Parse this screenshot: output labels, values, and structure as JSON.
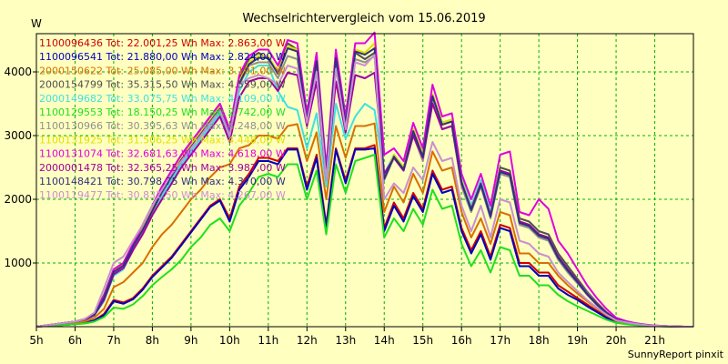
{
  "chart_data": {
    "type": "line",
    "title": "Wechselrichtervergleich vom 15.06.2019",
    "ylabel": "W",
    "footer": "SunnyReport pinxit",
    "ylim": [
      0,
      4600
    ],
    "yticks": [
      "1000",
      "2000",
      "3000",
      "4000"
    ],
    "ytick_values": [
      1000,
      2000,
      3000,
      4000
    ],
    "xlim": [
      5,
      22
    ],
    "xticks": [
      "5h",
      "6h",
      "7h",
      "8h",
      "9h",
      "10h",
      "11h",
      "12h",
      "13h",
      "14h",
      "15h",
      "16h",
      "17h",
      "18h",
      "19h",
      "20h",
      "21h"
    ],
    "xtick_values": [
      5,
      6,
      7,
      8,
      9,
      10,
      11,
      12,
      13,
      14,
      15,
      16,
      17,
      18,
      19,
      20,
      21
    ],
    "x": [
      5.0,
      5.25,
      5.5,
      5.75,
      6.0,
      6.25,
      6.5,
      6.75,
      7.0,
      7.25,
      7.5,
      7.75,
      8.0,
      8.25,
      8.5,
      8.75,
      9.0,
      9.25,
      9.5,
      9.75,
      10.0,
      10.25,
      10.5,
      10.75,
      11.0,
      11.25,
      11.5,
      11.75,
      12.0,
      12.25,
      12.5,
      12.75,
      13.0,
      13.25,
      13.5,
      13.75,
      14.0,
      14.25,
      14.5,
      14.75,
      15.0,
      15.25,
      15.5,
      15.75,
      16.0,
      16.25,
      16.5,
      16.75,
      17.0,
      17.25,
      17.5,
      17.75,
      18.0,
      18.25,
      18.5,
      18.75,
      19.0,
      19.25,
      19.5,
      19.75,
      20.0,
      20.25,
      20.5,
      20.75,
      21.0,
      21.25,
      21.5,
      21.75,
      22.0
    ],
    "series": [
      {
        "name": "1100096436 Tot: 22.001,25 Wh Max: 2.863,00 W",
        "color": "#d00000",
        "values": [
          0,
          10,
          20,
          30,
          40,
          60,
          100,
          200,
          420,
          380,
          450,
          600,
          800,
          950,
          1100,
          1300,
          1500,
          1700,
          1900,
          2000,
          1700,
          2200,
          2400,
          2650,
          2650,
          2600,
          2800,
          2800,
          2200,
          2700,
          1600,
          2800,
          2300,
          2800,
          2800,
          2850,
          1550,
          1950,
          1700,
          2100,
          1850,
          2450,
          2150,
          2200,
          1550,
          1200,
          1500,
          1100,
          1600,
          1550,
          1000,
          1000,
          850,
          850,
          650,
          550,
          450,
          350,
          250,
          150,
          80,
          60,
          40,
          25,
          15,
          8,
          3,
          0,
          0
        ]
      },
      {
        "name": "1100096541 Tot: 21.880,00 Wh Max: 2.824,00 W",
        "color": "#0000c0",
        "values": [
          0,
          10,
          20,
          30,
          40,
          60,
          100,
          180,
          400,
          360,
          430,
          580,
          780,
          930,
          1080,
          1280,
          1480,
          1680,
          1880,
          1980,
          1650,
          2150,
          2350,
          2600,
          2600,
          2550,
          2780,
          2780,
          2150,
          2650,
          1550,
          2780,
          2250,
          2780,
          2780,
          2800,
          1500,
          1900,
          1650,
          2050,
          1800,
          2400,
          2100,
          2150,
          1500,
          1150,
          1450,
          1050,
          1550,
          1500,
          950,
          950,
          800,
          800,
          600,
          500,
          420,
          320,
          230,
          140,
          70,
          50,
          35,
          20,
          12,
          6,
          2,
          0,
          0
        ]
      },
      {
        "name": "2000150622 Tot: 25.085,00 Wh Max: 3.191,00 W",
        "color": "#d87000",
        "values": [
          0,
          10,
          20,
          30,
          50,
          80,
          140,
          280,
          620,
          700,
          850,
          1000,
          1250,
          1450,
          1600,
          1800,
          2000,
          2150,
          2350,
          2500,
          2550,
          2800,
          2850,
          3000,
          3000,
          2950,
          3150,
          3180,
          2600,
          3050,
          2000,
          3150,
          2650,
          3150,
          3150,
          3190,
          1800,
          2200,
          1950,
          2400,
          2100,
          2750,
          2450,
          2500,
          1800,
          1400,
          1700,
          1300,
          1800,
          1750,
          1150,
          1150,
          1000,
          1000,
          800,
          650,
          520,
          400,
          290,
          180,
          90,
          60,
          40,
          25,
          15,
          8,
          3,
          0,
          0
        ]
      },
      {
        "name": "2000154799 Tot: 35.315,50 Wh Max: 4.559,00 W",
        "color": "#505050",
        "values": [
          0,
          20,
          40,
          60,
          80,
          120,
          200,
          500,
          900,
          1000,
          1300,
          1600,
          1900,
          2200,
          2450,
          2700,
          2900,
          3100,
          3300,
          3500,
          3100,
          3900,
          4200,
          4300,
          4200,
          4000,
          4450,
          4350,
          3300,
          4200,
          2400,
          4200,
          3200,
          4300,
          4200,
          4300,
          2350,
          2700,
          2500,
          3100,
          2700,
          3650,
          3200,
          3250,
          2300,
          1900,
          2300,
          1800,
          2500,
          2450,
          1700,
          1650,
          1500,
          1450,
          1150,
          950,
          750,
          550,
          380,
          230,
          120,
          80,
          50,
          30,
          18,
          10,
          4,
          0,
          0
        ]
      },
      {
        "name": "2000149682 Tot: 33.075,75 Wh Max: 4.109,00 W",
        "color": "#40e0e0",
        "values": [
          0,
          20,
          40,
          60,
          80,
          110,
          180,
          400,
          800,
          900,
          1200,
          1500,
          1800,
          2050,
          2300,
          2550,
          2750,
          2950,
          3150,
          3350,
          2950,
          3700,
          4000,
          4100,
          4100,
          3700,
          3450,
          3400,
          2800,
          3350,
          2200,
          3500,
          2950,
          3300,
          3500,
          3400,
          2400,
          2700,
          2500,
          3000,
          2700,
          3500,
          3200,
          3250,
          2350,
          1900,
          2300,
          1800,
          2450,
          2400,
          1650,
          1600,
          1450,
          1400,
          1100,
          900,
          720,
          530,
          360,
          220,
          110,
          75,
          45,
          28,
          16,
          8,
          3,
          0,
          0
        ]
      },
      {
        "name": "1100129553 Tot: 18.150,25 Wh Max: 2.742,00 W",
        "color": "#20e020",
        "values": [
          0,
          10,
          20,
          30,
          40,
          50,
          80,
          150,
          300,
          280,
          350,
          480,
          650,
          780,
          900,
          1050,
          1250,
          1400,
          1600,
          1700,
          1500,
          1900,
          2100,
          2350,
          2400,
          2350,
          2550,
          2550,
          2000,
          2450,
          1450,
          2550,
          2100,
          2600,
          2650,
          2700,
          1400,
          1700,
          1500,
          1850,
          1600,
          2150,
          1850,
          1900,
          1300,
          950,
          1200,
          850,
          1250,
          1200,
          800,
          800,
          650,
          650,
          500,
          400,
          320,
          250,
          180,
          110,
          60,
          40,
          25,
          15,
          8,
          4,
          1,
          0,
          0
        ]
      },
      {
        "name": "1100130966 Tot: 30.395,63 Wh Max: 4.248,00 W",
        "color": "#909090",
        "values": [
          0,
          20,
          40,
          60,
          80,
          110,
          180,
          440,
          850,
          950,
          1250,
          1500,
          1800,
          2100,
          2350,
          2600,
          2800,
          3000,
          3200,
          3400,
          3000,
          3800,
          4100,
          4150,
          4150,
          3900,
          4250,
          4200,
          3200,
          4100,
          2350,
          4100,
          3100,
          4200,
          4150,
          4248,
          2300,
          2650,
          2450,
          3000,
          2600,
          3550,
          3100,
          3150,
          2200,
          1800,
          2200,
          1700,
          2400,
          2350,
          1600,
          1550,
          1400,
          1350,
          1050,
          850,
          680,
          500,
          340,
          210,
          110,
          70,
          45,
          28,
          16,
          9,
          3,
          0,
          0
        ]
      },
      {
        "name": "1100131925 Tot: 31.506,25 Wh Max: 4.448,00 W",
        "color": "#e0e000",
        "values": [
          0,
          20,
          40,
          60,
          80,
          115,
          190,
          460,
          870,
          980,
          1280,
          1550,
          1850,
          2150,
          2400,
          2650,
          2850,
          3050,
          3250,
          3450,
          3050,
          3850,
          4150,
          4250,
          4250,
          4000,
          4400,
          4350,
          3250,
          4200,
          2400,
          4250,
          3200,
          4350,
          4300,
          4448,
          2350,
          2700,
          2500,
          3100,
          2700,
          3650,
          3200,
          3250,
          2300,
          1850,
          2250,
          1750,
          2450,
          2400,
          1650,
          1600,
          1450,
          1400,
          1100,
          900,
          710,
          520,
          360,
          220,
          115,
          75,
          48,
          30,
          17,
          9,
          3,
          0,
          0
        ]
      },
      {
        "name": "1100131074 Tot: 32.681,63 Wh Max: 4.618,00 W",
        "color": "#e000e0",
        "values": [
          0,
          20,
          40,
          60,
          80,
          120,
          200,
          480,
          900,
          1000,
          1300,
          1600,
          1900,
          2200,
          2450,
          2700,
          2900,
          3100,
          3300,
          3500,
          3100,
          3950,
          4250,
          4350,
          4350,
          4100,
          4500,
          4450,
          3350,
          4300,
          2500,
          4350,
          3300,
          4450,
          4450,
          4618,
          2700,
          2800,
          2600,
          3200,
          2800,
          3800,
          3300,
          3350,
          2400,
          2000,
          2400,
          1900,
          2700,
          2750,
          1800,
          1750,
          2000,
          1850,
          1350,
          1150,
          900,
          650,
          450,
          280,
          140,
          90,
          55,
          35,
          20,
          10,
          4,
          0,
          0
        ]
      },
      {
        "name": "2000001478 Tot: 32.365,25 Wh Max: 3.987,00 W",
        "color": "#a000a0",
        "values": [
          0,
          20,
          40,
          60,
          80,
          110,
          180,
          420,
          820,
          920,
          1200,
          1450,
          1750,
          2000,
          2250,
          2500,
          2700,
          2900,
          3100,
          3300,
          2900,
          3600,
          3850,
          3900,
          3900,
          3700,
          3987,
          3950,
          3150,
          3850,
          2300,
          3850,
          3050,
          3950,
          3900,
          3987,
          2400,
          2650,
          2450,
          3000,
          2650,
          3500,
          3100,
          3150,
          2250,
          1850,
          2250,
          1750,
          2450,
          2400,
          1650,
          1600,
          1450,
          1400,
          1100,
          900,
          720,
          520,
          360,
          220,
          115,
          75,
          46,
          28,
          16,
          8,
          3,
          0,
          0
        ]
      },
      {
        "name": "1100148421 Tot: 30.798,75 Wh Max: 4.370,00 W",
        "color": "#303080",
        "values": [
          0,
          20,
          40,
          60,
          80,
          115,
          190,
          450,
          860,
          960,
          1260,
          1520,
          1820,
          2120,
          2370,
          2620,
          2820,
          3020,
          3220,
          3420,
          3020,
          3820,
          4120,
          4220,
          4220,
          3970,
          4370,
          4320,
          3230,
          4170,
          2380,
          4220,
          3180,
          4320,
          4270,
          4370,
          2320,
          2670,
          2470,
          3070,
          2670,
          3620,
          3170,
          3220,
          2270,
          1830,
          2230,
          1730,
          2430,
          2380,
          1630,
          1580,
          1430,
          1380,
          1080,
          880,
          700,
          510,
          350,
          215,
          112,
          72,
          46,
          28,
          16,
          9,
          3,
          0,
          0
        ]
      },
      {
        "name": "1100119477 Tot: 30.831,50 Wh Max: 4.267,00 W",
        "color": "#c890d0",
        "values": [
          0,
          20,
          40,
          60,
          80,
          120,
          220,
          600,
          1000,
          1100,
          1350,
          1600,
          1900,
          2150,
          2400,
          2600,
          2800,
          3000,
          3200,
          3400,
          3000,
          3800,
          3900,
          3950,
          3900,
          3800,
          4100,
          4050,
          3200,
          4000,
          2300,
          4050,
          3100,
          4150,
          4100,
          4267,
          2000,
          2250,
          2100,
          2500,
          2300,
          2900,
          2600,
          2650,
          1900,
          1500,
          1900,
          1400,
          2000,
          1950,
          1350,
          1300,
          1150,
          1100,
          850,
          700,
          560,
          420,
          300,
          190,
          100,
          70,
          44,
          27,
          15,
          8,
          3,
          0,
          0
        ]
      }
    ]
  }
}
